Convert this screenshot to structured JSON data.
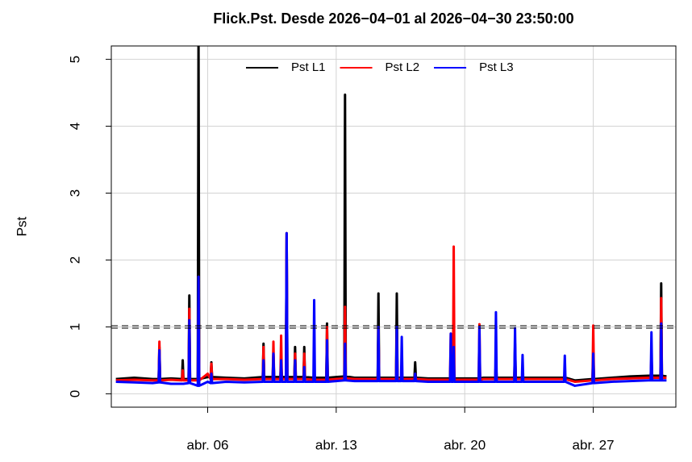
{
  "chart_data": {
    "type": "line",
    "title": "Flick.Pst. Desde  2026−04−01  al  2026−04−30 23:50:00",
    "y_label": "Pst",
    "x": [
      1,
      2,
      3,
      3.33,
      3.37,
      3.41,
      4,
      4.6,
      4.64,
      4.68,
      4.96,
      5.0,
      5.04,
      5.46,
      5.5,
      5.54,
      6,
      6.16,
      6.2,
      6.24,
      7,
      8,
      9.0,
      9.04,
      9.08,
      9.54,
      9.58,
      9.62,
      9.96,
      10.0,
      10.04,
      10.26,
      10.3,
      10.34,
      10.72,
      10.76,
      10.8,
      11.22,
      11.26,
      11.3,
      11.76,
      11.8,
      11.84,
      12.46,
      12.5,
      12.54,
      13,
      13.44,
      13.48,
      13.52,
      14,
      15,
      15.26,
      15.3,
      15.34,
      16,
      16.26,
      16.3,
      16.34,
      16.53,
      16.57,
      16.61,
      17,
      17.26,
      17.3,
      17.34,
      18,
      19,
      19.2,
      19.24,
      19.28,
      19.36,
      19.4,
      19.44,
      20,
      20.76,
      20.8,
      20.84,
      21,
      21.66,
      21.7,
      21.74,
      22,
      22.7,
      22.74,
      22.78,
      23.11,
      23.15,
      23.19,
      24,
      25,
      25.41,
      25.45,
      25.49,
      26,
      26.96,
      27.0,
      27.04,
      28,
      29,
      30,
      30.13,
      30.17,
      30.21,
      30.66,
      30.7,
      30.74,
      30.99
    ],
    "series": [
      {
        "name": "Pst L1",
        "color": "#000000",
        "values": [
          0.22,
          0.24,
          0.22,
          0.22,
          0.7,
          0.22,
          0.23,
          0.22,
          0.5,
          0.22,
          0.22,
          1.47,
          0.22,
          0.22,
          5.3,
          0.22,
          0.25,
          0.25,
          0.47,
          0.25,
          0.24,
          0.23,
          0.25,
          0.75,
          0.25,
          0.25,
          0.6,
          0.25,
          0.25,
          0.5,
          0.25,
          0.25,
          2.4,
          0.25,
          0.25,
          0.7,
          0.25,
          0.25,
          0.7,
          0.25,
          0.24,
          0.3,
          0.24,
          0.24,
          1.05,
          0.24,
          0.25,
          0.26,
          4.47,
          0.26,
          0.24,
          0.24,
          0.24,
          1.5,
          0.24,
          0.24,
          0.24,
          1.5,
          0.24,
          0.24,
          0.3,
          0.24,
          0.24,
          0.24,
          0.47,
          0.24,
          0.23,
          0.23,
          0.23,
          0.6,
          0.23,
          0.23,
          0.5,
          0.23,
          0.23,
          0.23,
          0.5,
          0.23,
          0.24,
          0.24,
          0.5,
          0.24,
          0.24,
          0.24,
          0.75,
          0.24,
          0.24,
          0.3,
          0.24,
          0.24,
          0.24,
          0.24,
          0.3,
          0.24,
          0.2,
          0.22,
          0.65,
          0.22,
          0.24,
          0.26,
          0.27,
          0.27,
          0.5,
          0.27,
          0.27,
          1.65,
          0.27,
          0.26
        ]
      },
      {
        "name": "Pst L2",
        "color": "#ff0000",
        "values": [
          0.2,
          0.21,
          0.2,
          0.2,
          0.78,
          0.2,
          0.21,
          0.2,
          0.35,
          0.2,
          0.2,
          1.27,
          0.2,
          0.2,
          1.75,
          0.2,
          0.3,
          0.22,
          0.45,
          0.22,
          0.22,
          0.21,
          0.22,
          0.7,
          0.22,
          0.22,
          0.78,
          0.22,
          0.22,
          0.87,
          0.22,
          0.22,
          2.4,
          0.22,
          0.22,
          0.6,
          0.22,
          0.22,
          0.6,
          0.22,
          0.21,
          0.3,
          0.21,
          0.21,
          1.0,
          0.21,
          0.22,
          0.23,
          1.3,
          0.23,
          0.22,
          0.22,
          0.22,
          1.0,
          0.22,
          0.22,
          0.22,
          1.0,
          0.22,
          0.22,
          0.3,
          0.22,
          0.22,
          0.22,
          0.3,
          0.22,
          0.21,
          0.21,
          0.21,
          0.9,
          0.21,
          0.21,
          2.2,
          0.21,
          0.21,
          0.21,
          1.04,
          0.21,
          0.22,
          0.22,
          0.5,
          0.22,
          0.22,
          0.22,
          0.6,
          0.22,
          0.22,
          0.3,
          0.22,
          0.22,
          0.22,
          0.22,
          0.3,
          0.22,
          0.18,
          0.2,
          1.02,
          0.2,
          0.22,
          0.23,
          0.24,
          0.24,
          0.6,
          0.24,
          0.24,
          1.43,
          0.24,
          0.24
        ]
      },
      {
        "name": "Pst L3",
        "color": "#0000ff",
        "values": [
          0.18,
          0.17,
          0.16,
          0.17,
          0.65,
          0.17,
          0.15,
          0.15,
          0.15,
          0.15,
          0.16,
          1.1,
          0.16,
          0.12,
          1.75,
          0.12,
          0.18,
          0.16,
          0.3,
          0.16,
          0.18,
          0.17,
          0.18,
          0.5,
          0.18,
          0.18,
          0.6,
          0.18,
          0.18,
          0.5,
          0.18,
          0.18,
          2.4,
          0.18,
          0.18,
          0.5,
          0.18,
          0.18,
          0.4,
          0.18,
          0.18,
          1.4,
          0.18,
          0.18,
          0.8,
          0.18,
          0.19,
          0.2,
          0.75,
          0.2,
          0.19,
          0.19,
          0.19,
          1.0,
          0.19,
          0.19,
          0.19,
          1.0,
          0.19,
          0.19,
          0.85,
          0.19,
          0.19,
          0.19,
          0.3,
          0.19,
          0.18,
          0.18,
          0.18,
          0.9,
          0.18,
          0.18,
          0.7,
          0.18,
          0.18,
          0.18,
          1.0,
          0.18,
          0.18,
          0.18,
          1.22,
          0.18,
          0.18,
          0.18,
          0.98,
          0.18,
          0.18,
          0.58,
          0.18,
          0.18,
          0.18,
          0.18,
          0.57,
          0.18,
          0.12,
          0.16,
          0.6,
          0.16,
          0.18,
          0.19,
          0.2,
          0.2,
          0.92,
          0.2,
          0.2,
          1.05,
          0.2,
          0.2
        ]
      }
    ],
    "reference_line": 1,
    "xlim": [
      0.75,
      31.5
    ],
    "xticks": [
      {
        "value": 6,
        "label": "abr. 06"
      },
      {
        "value": 13,
        "label": "abr. 13"
      },
      {
        "value": 20,
        "label": "abr. 20"
      },
      {
        "value": 27,
        "label": "abr. 27"
      }
    ],
    "ylim": [
      -0.2,
      5.2
    ],
    "yticks": [
      0,
      1,
      2,
      3,
      4,
      5
    ],
    "grid": true,
    "legend": "top"
  }
}
